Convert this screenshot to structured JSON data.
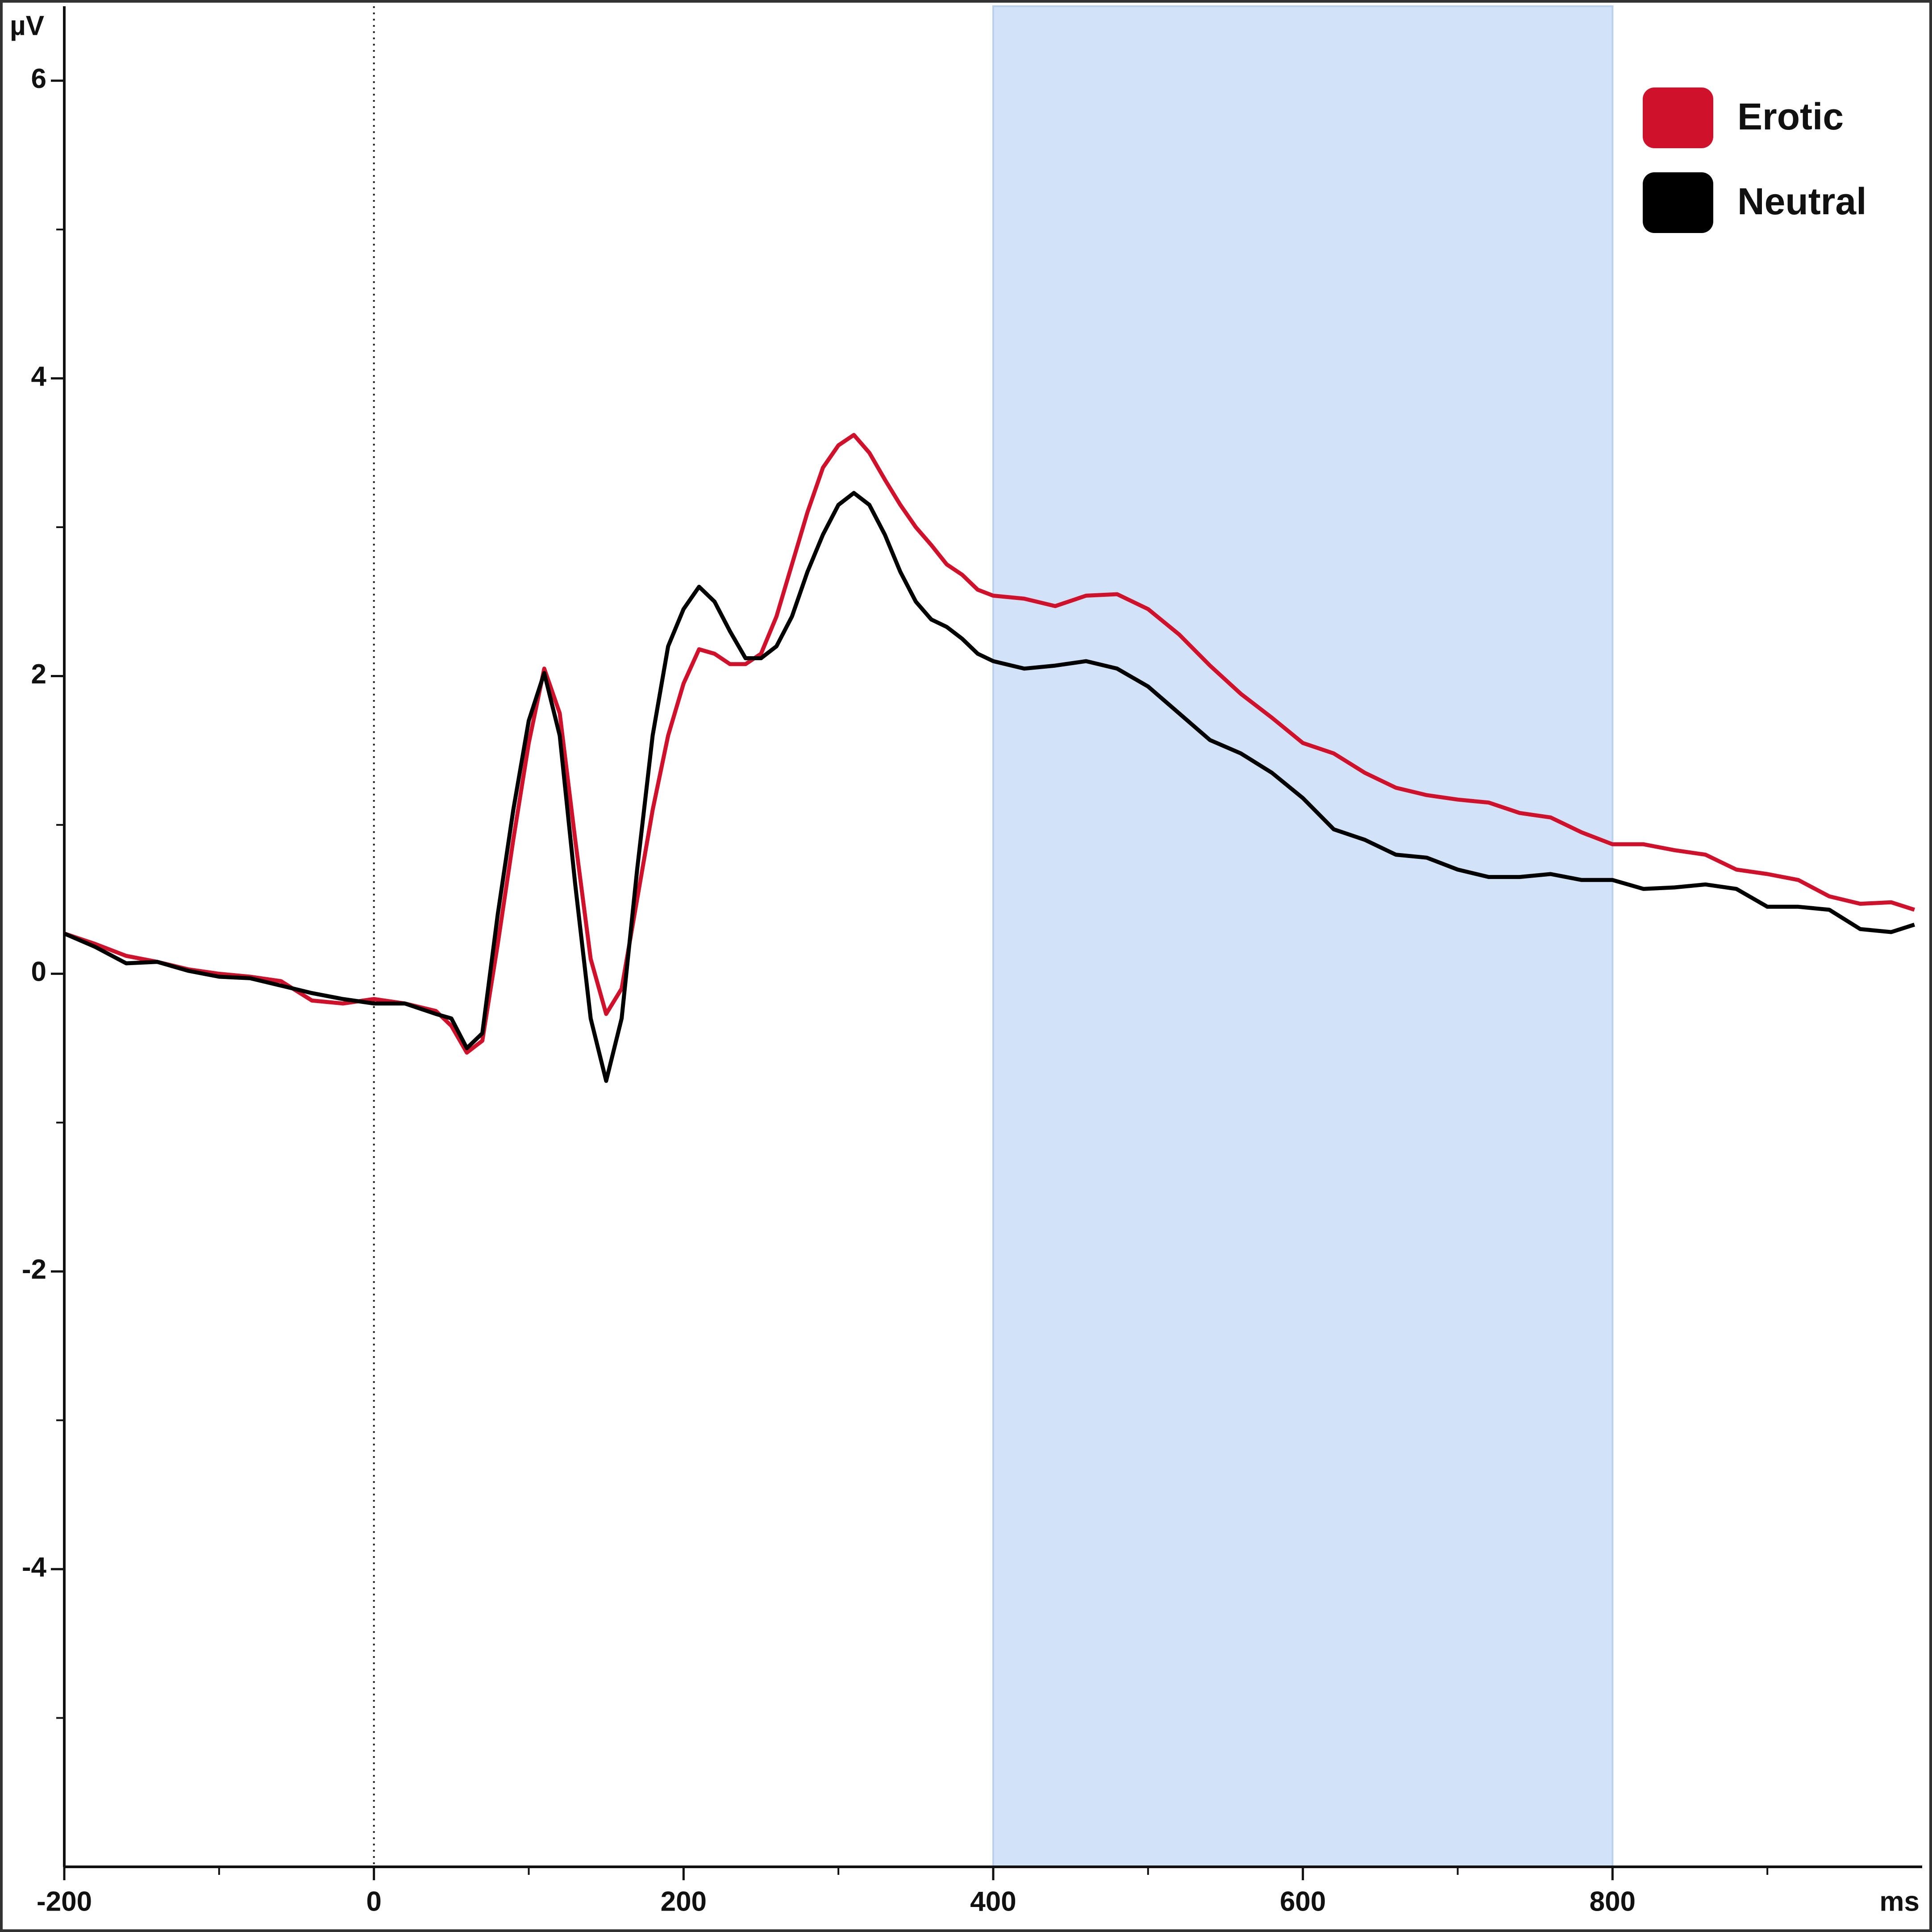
{
  "chart_data": {
    "type": "line",
    "x_label": "ms",
    "y_label": "µV",
    "xlim": [
      -200,
      1000
    ],
    "ylim": [
      -6,
      6.5
    ],
    "xticks": [
      -200,
      0,
      200,
      400,
      600,
      800
    ],
    "yticks": [
      -4,
      -2,
      0,
      2,
      4,
      6
    ],
    "xminorticks": [
      -100,
      100,
      300,
      500,
      700,
      900
    ],
    "yminorticks": [
      -5,
      -3,
      -1,
      1,
      3,
      5
    ],
    "highlight": [
      400,
      800
    ],
    "highlight_color": "#d3e3f7",
    "vline": 0,
    "legend": "top-right",
    "x": [
      -200,
      -180,
      -160,
      -140,
      -120,
      -100,
      -80,
      -60,
      -40,
      -20,
      0,
      20,
      40,
      50,
      60,
      70,
      80,
      90,
      100,
      110,
      120,
      130,
      140,
      150,
      160,
      170,
      180,
      190,
      200,
      210,
      220,
      230,
      240,
      250,
      260,
      270,
      280,
      290,
      300,
      310,
      320,
      330,
      340,
      350,
      360,
      370,
      380,
      390,
      400,
      420,
      440,
      460,
      480,
      500,
      520,
      540,
      560,
      580,
      600,
      620,
      640,
      660,
      680,
      700,
      720,
      740,
      760,
      780,
      800,
      820,
      840,
      860,
      880,
      900,
      920,
      940,
      960,
      980,
      995
    ],
    "series": [
      {
        "name": "Erotic",
        "color": "#d0112b",
        "values": [
          0.27,
          0.2,
          0.12,
          0.08,
          0.03,
          0.0,
          -0.02,
          -0.05,
          -0.18,
          -0.2,
          -0.17,
          -0.2,
          -0.25,
          -0.35,
          -0.53,
          -0.45,
          0.2,
          0.9,
          1.55,
          2.05,
          1.75,
          0.9,
          0.1,
          -0.27,
          -0.1,
          0.5,
          1.1,
          1.6,
          1.95,
          2.18,
          2.15,
          2.08,
          2.08,
          2.15,
          2.4,
          2.75,
          3.1,
          3.4,
          3.55,
          3.62,
          3.5,
          3.32,
          3.15,
          3.0,
          2.88,
          2.75,
          2.68,
          2.58,
          2.54,
          2.52,
          2.47,
          2.54,
          2.55,
          2.45,
          2.28,
          2.07,
          1.88,
          1.72,
          1.55,
          1.48,
          1.35,
          1.25,
          1.2,
          1.17,
          1.15,
          1.08,
          1.05,
          0.95,
          0.87,
          0.87,
          0.83,
          0.8,
          0.7,
          0.67,
          0.63,
          0.52,
          0.47,
          0.48,
          0.43
        ]
      },
      {
        "name": "Neutral",
        "color": "#000000",
        "values": [
          0.27,
          0.18,
          0.07,
          0.08,
          0.02,
          -0.02,
          -0.03,
          -0.08,
          -0.13,
          -0.17,
          -0.2,
          -0.2,
          -0.27,
          -0.3,
          -0.5,
          -0.4,
          0.4,
          1.1,
          1.7,
          2.02,
          1.6,
          0.6,
          -0.3,
          -0.72,
          -0.3,
          0.7,
          1.6,
          2.2,
          2.45,
          2.6,
          2.5,
          2.3,
          2.12,
          2.12,
          2.2,
          2.4,
          2.7,
          2.95,
          3.15,
          3.23,
          3.15,
          2.95,
          2.7,
          2.5,
          2.38,
          2.33,
          2.25,
          2.15,
          2.1,
          2.05,
          2.07,
          2.1,
          2.05,
          1.93,
          1.75,
          1.57,
          1.48,
          1.35,
          1.18,
          0.97,
          0.9,
          0.8,
          0.78,
          0.7,
          0.65,
          0.65,
          0.67,
          0.63,
          0.63,
          0.57,
          0.58,
          0.6,
          0.57,
          0.45,
          0.45,
          0.43,
          0.3,
          0.28,
          0.33
        ]
      }
    ]
  }
}
